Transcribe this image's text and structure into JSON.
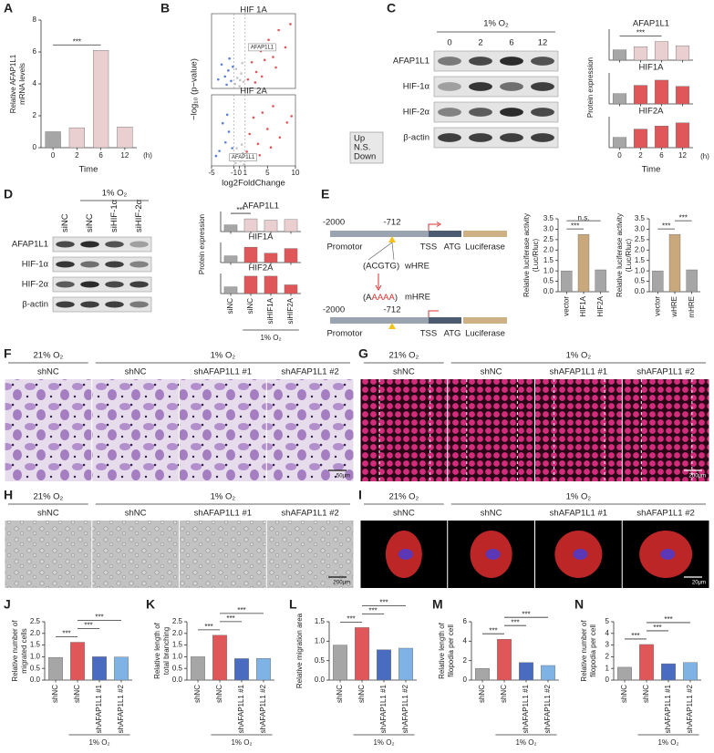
{
  "panel_letters": [
    "A",
    "B",
    "C",
    "D",
    "E",
    "F",
    "G",
    "H",
    "I",
    "J",
    "K",
    "L",
    "M",
    "N"
  ],
  "chart_data": [
    {
      "type": "bar",
      "ylabel": [
        "Relative AFAP1L1",
        "mRNA levels"
      ],
      "xlabel": "Time",
      "unit": "(h)",
      "categories": [
        "0",
        "2",
        "6",
        "12"
      ],
      "values": [
        1.0,
        1.25,
        6.1,
        1.3
      ],
      "colors": [
        "#a6a6a6",
        "#e9cfd0",
        "#e9cfd0",
        "#e9cfd0"
      ],
      "ylim": [
        0,
        8
      ],
      "yticks": [
        0,
        2,
        4,
        6,
        8
      ],
      "significance": [
        "***"
      ]
    },
    {
      "type": "scatter",
      "title": "HIF 1A",
      "ylabel": "−log₁₀ (p−value)",
      "xlim": [
        -5,
        10
      ],
      "ylim": [
        0,
        10
      ],
      "vlines": [
        -1,
        1
      ],
      "annotation": {
        "text": "AFAP1L1",
        "x": 1.6,
        "y": 5.5
      },
      "series": [
        {
          "name": "Up",
          "color": "#e0575a",
          "x": [
            1.5,
            2.2,
            3,
            3.8,
            4.5,
            5.2,
            6,
            7,
            8.2,
            9.1,
            2.8,
            4,
            6.5
          ],
          "values": [
            1.2,
            3.5,
            2.2,
            5,
            3.8,
            6.5,
            4.2,
            7.8,
            5.5,
            8.6,
            0.8,
            1.6,
            2.8
          ]
        },
        {
          "name": "N.S.",
          "color": "#c4c4c4",
          "x": [
            -0.8,
            -0.4,
            0,
            0.3,
            0.7,
            -0.6,
            0.5,
            0.1
          ],
          "values": [
            0.6,
            1.4,
            0.3,
            2,
            0.9,
            2.6,
            3.4,
            1.1
          ]
        },
        {
          "name": "Down",
          "color": "#5b7fd6",
          "x": [
            -1.5,
            -2,
            -2.6,
            -3.2,
            -1.8,
            -3.8,
            -2.3,
            -1.2
          ],
          "values": [
            1,
            2.4,
            1.6,
            3.2,
            4,
            1.2,
            0.5,
            2.9
          ]
        }
      ]
    },
    {
      "type": "scatter",
      "title": "HIF 2A",
      "xlabel": "log2FoldChange",
      "xlim": [
        -5,
        10
      ],
      "xticks": [
        -5,
        -1,
        0,
        1,
        5,
        10
      ],
      "ylim": [
        0,
        10
      ],
      "vlines": [
        -1,
        1
      ],
      "legend": "right",
      "annotation": {
        "text": "AFAP1L1",
        "x": -1.8,
        "y": 1.2
      },
      "series": [
        {
          "name": "Up",
          "color": "#e0575a",
          "x": [
            1.3,
            1.8,
            2.5,
            3.3,
            4.1,
            5,
            6,
            7.2,
            8.5,
            9.3,
            2,
            3.6,
            5.6
          ],
          "values": [
            2,
            4.5,
            6.8,
            3.1,
            7.5,
            5.2,
            8.4,
            4,
            6.1,
            7,
            1,
            1.5,
            2.6
          ]
        },
        {
          "name": "N.S.",
          "color": "#c4c4c4",
          "x": [
            -0.7,
            -0.3,
            0.2,
            0.6,
            -0.5,
            0.4,
            0,
            0.8
          ],
          "values": [
            0.4,
            1.2,
            0.7,
            1.8,
            2.5,
            3,
            1.5,
            0.2
          ]
        },
        {
          "name": "Down",
          "color": "#5b7fd6",
          "x": [
            -1.3,
            -1.9,
            -2.5,
            -3,
            -3.6,
            -4.2,
            -2.2,
            -1.6
          ],
          "values": [
            2.5,
            4.8,
            3.3,
            6,
            2.1,
            1.4,
            7.2,
            1
          ]
        }
      ]
    },
    {
      "type": "bar",
      "facet": true,
      "ylabel": [
        "Protein expression"
      ],
      "xlabel": "Time",
      "unit": "(h)",
      "categories": [
        "0",
        "2",
        "6",
        "12"
      ],
      "ylim": [
        0,
        3
      ],
      "series": [
        {
          "name": "AFAP1L1",
          "colors": [
            "#a6a6a6",
            "#e9cfd0",
            "#e9cfd0",
            "#e9cfd0"
          ],
          "values": [
            1.0,
            1.3,
            1.8,
            1.4
          ],
          "significance": [
            "***"
          ]
        },
        {
          "name": "HIF1A",
          "colors": [
            "#a6a6a6",
            "#e0575a",
            "#e0575a",
            "#e0575a"
          ],
          "values": [
            1.0,
            1.8,
            2.3,
            1.7
          ]
        },
        {
          "name": "HIF2A",
          "colors": [
            "#a6a6a6",
            "#e0575a",
            "#e0575a",
            "#e0575a"
          ],
          "values": [
            1.0,
            1.8,
            2.1,
            2.4
          ]
        }
      ]
    },
    {
      "type": "bar",
      "facet": true,
      "ylabel": [
        "Protein expression"
      ],
      "categories": [
        "siNC",
        "siNC",
        "siHIF1A",
        "siHIF2A"
      ],
      "footer": "1% O₂",
      "ylim": [
        0,
        3
      ],
      "series": [
        {
          "name": "AFAP1L1",
          "colors": [
            "#a6a6a6",
            "#e9cfd0",
            "#e9cfd0",
            "#e9cfd0"
          ],
          "values": [
            1.0,
            1.9,
            1.7,
            1.8
          ],
          "significance": [
            "***"
          ]
        },
        {
          "name": "HIF1A",
          "colors": [
            "#a6a6a6",
            "#e0575a",
            "#e0575a",
            "#e0575a"
          ],
          "values": [
            1.0,
            2.3,
            1.4,
            2.1
          ]
        },
        {
          "name": "HIF2A",
          "colors": [
            "#a6a6a6",
            "#e0575a",
            "#e0575a",
            "#e0575a"
          ],
          "values": [
            1.0,
            2.6,
            2.6,
            1.3
          ]
        }
      ]
    },
    {
      "type": "bar",
      "ylabel": [
        "Relative luciferase activity",
        "(Luc/Rluc)"
      ],
      "categories": [
        "vector",
        "HIF1A",
        "HIF2A"
      ],
      "values": [
        1.0,
        2.75,
        1.05
      ],
      "colors": [
        "#a6a6a6",
        "#c9a87c",
        "#a6a6a6"
      ],
      "ylim": [
        0,
        3.5
      ],
      "yticks": [
        {
          "value": 0,
          "label": "0.0"
        },
        0.5,
        {
          "value": 1,
          "label": "1.0"
        },
        1.5,
        {
          "value": 2,
          "label": "2.0"
        },
        2.5,
        {
          "value": 3,
          "label": "3.0"
        },
        3.5
      ],
      "significance": [
        "n.s.",
        "***"
      ]
    },
    {
      "type": "bar",
      "ylabel": [
        "Relative luciferase activity",
        "(Luc/Rluc)"
      ],
      "categories": [
        "vector",
        "wHRE",
        "mHRE"
      ],
      "values": [
        1.0,
        2.75,
        1.05
      ],
      "colors": [
        "#a6a6a6",
        "#c9a87c",
        "#a6a6a6"
      ],
      "ylim": [
        0,
        3.5
      ],
      "yticks": [
        {
          "value": 0,
          "label": "0.0"
        },
        0.5,
        {
          "value": 1,
          "label": "1.0"
        },
        1.5,
        {
          "value": 2,
          "label": "2.0"
        },
        2.5,
        {
          "value": 3,
          "label": "3.0"
        },
        3.5
      ],
      "significance": [
        "***",
        "***"
      ]
    },
    {
      "type": "bar",
      "ylabel": [
        "Relative number of",
        "migrated cells"
      ],
      "categories": [
        "shNC",
        "shNC",
        "shAFAP1L1 #1",
        "shAFAP1L1 #2"
      ],
      "footer": "1% O₂",
      "values": [
        0.97,
        1.62,
        1.0,
        0.99
      ],
      "colors": [
        "#a6a6a6",
        "#e0575a",
        "#4a6cc0",
        "#7fb2e5"
      ],
      "ylim": [
        0,
        2.5
      ],
      "yticks": [
        {
          "value": 0,
          "label": "0.0"
        },
        0.5,
        {
          "value": 1,
          "label": "1.0"
        },
        1.5,
        {
          "value": 2,
          "label": "2.0"
        },
        2.5
      ],
      "significance": [
        "***",
        "***",
        "***"
      ]
    },
    {
      "type": "bar",
      "ylabel": [
        "Relative  length of",
        "total branching"
      ],
      "categories": [
        "shNC",
        "shNC",
        "shAFAP1L1 #1",
        "shAFAP1L1 #2"
      ],
      "footer": "1% O₂",
      "values": [
        1.0,
        1.92,
        0.92,
        0.93
      ],
      "colors": [
        "#a6a6a6",
        "#e0575a",
        "#4a6cc0",
        "#7fb2e5"
      ],
      "ylim": [
        0,
        2.5
      ],
      "yticks": [
        {
          "value": 0,
          "label": "0.0"
        },
        0.5,
        {
          "value": 1,
          "label": "1.0"
        },
        1.5,
        {
          "value": 2,
          "label": "2.0"
        },
        2.5
      ],
      "significance": [
        "***",
        "***",
        "***"
      ]
    },
    {
      "type": "bar",
      "ylabel": [
        "Relative migration area"
      ],
      "categories": [
        "shNC",
        "shNC",
        "shAFAP1L1 #1",
        "shAFAP1L1 #2"
      ],
      "footer": "1% O₂",
      "values": [
        0.9,
        1.35,
        0.78,
        0.82
      ],
      "colors": [
        "#a6a6a6",
        "#e0575a",
        "#4a6cc0",
        "#7fb2e5"
      ],
      "ylim": [
        0,
        1.5
      ],
      "yticks": [
        {
          "value": 0,
          "label": "0.0"
        },
        0.5,
        {
          "value": 1,
          "label": "1.0"
        },
        1.5
      ],
      "significance": [
        "***",
        "***",
        "***"
      ]
    },
    {
      "type": "bar",
      "ylabel": [
        "Relative length of",
        "filopodia per cell"
      ],
      "categories": [
        "shNC",
        "shNC",
        "shAFAP1L1 #1",
        "shAFAP1L1 #2"
      ],
      "footer": "1% O₂",
      "values": [
        1.2,
        4.2,
        1.8,
        1.5
      ],
      "colors": [
        "#a6a6a6",
        "#e0575a",
        "#4a6cc0",
        "#7fb2e5"
      ],
      "ylim": [
        0,
        6
      ],
      "yticks": [
        0,
        2,
        4,
        6
      ],
      "significance": [
        "***",
        "***",
        "***"
      ]
    },
    {
      "type": "bar",
      "ylabel": [
        "Relative number of",
        "filopodia per cell"
      ],
      "categories": [
        "shNC",
        "shNC",
        "shAFAP1L1 #1",
        "shAFAP1L1 #2"
      ],
      "footer": "1% O₂",
      "values": [
        1.1,
        3.05,
        1.4,
        1.5
      ],
      "colors": [
        "#a6a6a6",
        "#e0575a",
        "#4a6cc0",
        "#7fb2e5"
      ],
      "ylim": [
        0,
        5
      ],
      "yticks": [
        0,
        1,
        2,
        3,
        4,
        5
      ],
      "significance": [
        "***",
        "***",
        "***"
      ]
    }
  ],
  "figure": {
    "blots": [
      {
        "header": "1% O₂",
        "lanes": [
          "0",
          "2",
          "6",
          "12"
        ],
        "rows": [
          "AFAP1L1",
          "HIF-1α",
          "HIF-2α",
          "β-actin"
        ]
      },
      {
        "header": "1% O₂",
        "lanes": [
          "siNC",
          "siNC",
          "siHIF-1α",
          "siHIF-2α"
        ],
        "rows": [
          "AFAP1L1",
          "HIF-1α",
          "HIF-2α",
          "β-actin"
        ]
      }
    ],
    "diagram": {
      "rows": [
        {
          "start": "-2000",
          "site": "-712",
          "promoter": "Promotor",
          "tss": "TSS",
          "atg": "ATG",
          "reporter": "Luciferase"
        },
        {
          "start": "-2000",
          "site": "-712",
          "promoter": "Promotor",
          "tss": "TSS",
          "atg": "ATG",
          "reporter": "Luciferase"
        }
      ],
      "wild": "(ACGTG)",
      "wild_label": "wHRE",
      "mutant_parts": [
        "(A",
        "AAAA",
        ")"
      ],
      "mutant_label": "mHRE"
    },
    "images": [
      {
        "header_left": "21% O₂",
        "header_right": "1% O₂",
        "labels": [
          "shNC",
          "shNC",
          "shAFAP1L1 #1",
          "shAFAP1L1 #2"
        ],
        "scale": "50μm"
      },
      {
        "header_left": "21% O₂",
        "header_right": "1% O₂",
        "labels": [
          "shNC",
          "shNC",
          "shAFAP1L1 #1",
          "shAFAP1L1 #2"
        ],
        "scale": "200μm"
      },
      {
        "header_left": "21% O₂",
        "header_right": "1% O₂",
        "labels": [
          "shNC",
          "shNC",
          "shAFAP1L1 #1",
          "shAFAP1L1 #2"
        ],
        "scale": "200μm"
      },
      {
        "header_left": "21% O₂",
        "header_right": "1% O₂",
        "labels": [
          "shNC",
          "shNC",
          "shAFAP1L1 #1",
          "shAFAP1L1 #2"
        ],
        "scale": "20μm"
      }
    ]
  }
}
